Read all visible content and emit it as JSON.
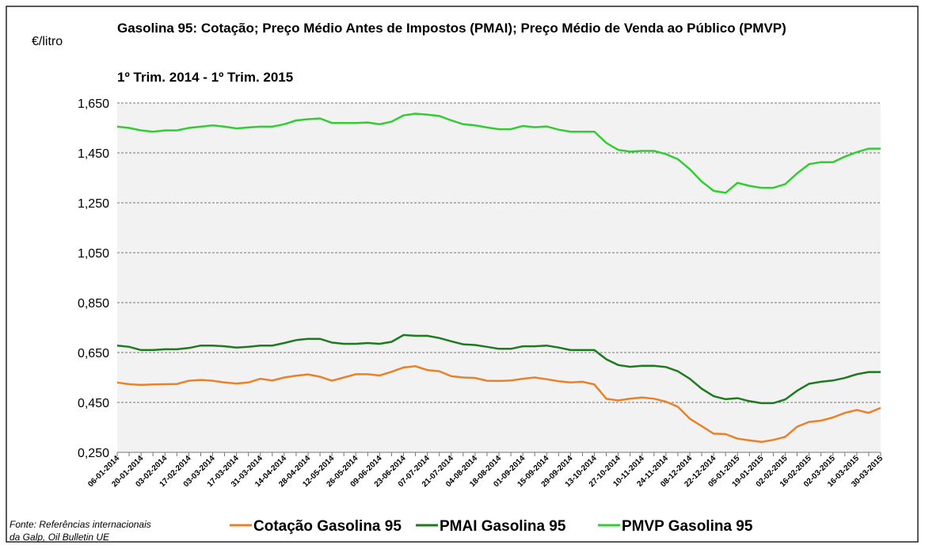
{
  "chart_data": {
    "type": "line",
    "title": "Gasolina 95: Cotação; Preço  Médio Antes de Impostos (PMAI); Preço Médio de Venda ao Público (PMVP)",
    "subtitle": "1º Trim. 2014 -  1º Trim. 2015",
    "y_axis_label": "€/litro",
    "source": [
      "Fonte: Referências internacionais",
      "da Galp, Oil Bulletin UE"
    ],
    "categories": [
      "06-01-2014",
      null,
      "20-01-2014",
      null,
      "03-02-2014",
      null,
      "17-02-2014",
      null,
      "03-03-2014",
      null,
      "17-03-2014",
      null,
      "31-03-2014",
      null,
      "14-04-2014",
      null,
      "28-04-2014",
      null,
      "12-05-2014",
      null,
      "26-05-2014",
      null,
      "09-06-2014",
      null,
      "23-06-2014",
      null,
      "07-07-2014",
      null,
      "21-07-2014",
      null,
      "04-08-2014",
      null,
      "18-08-2014",
      null,
      "01-09-2014",
      null,
      "15-09-2014",
      null,
      "29-09-2014",
      null,
      "13-10-2014",
      null,
      "27-10-2014",
      null,
      "10-11-2014",
      null,
      "24-11-2014",
      null,
      "08-12-2014",
      null,
      "22-12-2014",
      null,
      "05-01-2015",
      null,
      "19-01-2015",
      null,
      "02-02-2015",
      null,
      "16-02-2015",
      null,
      "02-03-2015",
      null,
      "16-03-2015",
      null,
      "30-03-2015"
    ],
    "series": [
      {
        "name": "Cotação Gasolina 95",
        "color": "#e8822a",
        "values": [
          0.53,
          0.523,
          0.52,
          0.522,
          0.523,
          0.524,
          0.537,
          0.54,
          0.537,
          0.53,
          0.526,
          0.53,
          0.545,
          0.538,
          0.55,
          0.557,
          0.562,
          0.553,
          0.537,
          0.55,
          0.563,
          0.563,
          0.558,
          0.573,
          0.59,
          0.595,
          0.58,
          0.575,
          0.555,
          0.55,
          0.548,
          0.537,
          0.536,
          0.538,
          0.545,
          0.55,
          0.543,
          0.535,
          0.53,
          0.533,
          0.522,
          0.465,
          0.458,
          0.465,
          0.47,
          0.465,
          0.453,
          0.433,
          0.385,
          0.355,
          0.325,
          0.323,
          0.305,
          0.298,
          0.292,
          0.3,
          0.312,
          0.353,
          0.372,
          0.377,
          0.39,
          0.408,
          0.42,
          0.408,
          0.428
        ]
      },
      {
        "name": "PMAI Gasolina 95",
        "color": "#1e7a1e",
        "values": [
          0.678,
          0.673,
          0.66,
          0.66,
          0.663,
          0.663,
          0.668,
          0.678,
          0.678,
          0.675,
          0.67,
          0.673,
          0.678,
          0.678,
          0.688,
          0.7,
          0.705,
          0.705,
          0.69,
          0.685,
          0.685,
          0.688,
          0.685,
          0.693,
          0.72,
          0.717,
          0.717,
          0.708,
          0.695,
          0.683,
          0.68,
          0.673,
          0.665,
          0.665,
          0.675,
          0.675,
          0.678,
          0.67,
          0.66,
          0.66,
          0.66,
          0.623,
          0.6,
          0.593,
          0.597,
          0.597,
          0.592,
          0.575,
          0.545,
          0.505,
          0.475,
          0.463,
          0.467,
          0.455,
          0.447,
          0.447,
          0.462,
          0.497,
          0.525,
          0.533,
          0.538,
          0.548,
          0.563,
          0.572,
          0.572
        ]
      },
      {
        "name": "PMVP Gasolina 95",
        "color": "#33cc33",
        "values": [
          1.555,
          1.55,
          1.54,
          1.535,
          1.54,
          1.54,
          1.55,
          1.555,
          1.56,
          1.555,
          1.548,
          1.552,
          1.555,
          1.555,
          1.565,
          1.58,
          1.585,
          1.588,
          1.57,
          1.57,
          1.57,
          1.572,
          1.565,
          1.575,
          1.6,
          1.607,
          1.603,
          1.598,
          1.58,
          1.565,
          1.56,
          1.552,
          1.545,
          1.545,
          1.558,
          1.553,
          1.556,
          1.543,
          1.535,
          1.535,
          1.535,
          1.49,
          1.462,
          1.455,
          1.458,
          1.458,
          1.445,
          1.425,
          1.385,
          1.335,
          1.298,
          1.29,
          1.33,
          1.318,
          1.31,
          1.31,
          1.325,
          1.368,
          1.405,
          1.413,
          1.413,
          1.435,
          1.453,
          1.467,
          1.467
        ]
      }
    ],
    "ylim": [
      0.25,
      1.65
    ],
    "yticks": [
      {
        "value": 0.25,
        "label": "0,250"
      },
      {
        "value": 0.45,
        "label": "0,450"
      },
      {
        "value": 0.65,
        "label": "0,650"
      },
      {
        "value": 0.85,
        "label": "0,850"
      },
      {
        "value": 1.05,
        "label": "1,050"
      },
      {
        "value": 1.25,
        "label": "1,250"
      },
      {
        "value": 1.45,
        "label": "1,450"
      },
      {
        "value": 1.65,
        "label": "1,650"
      }
    ],
    "grid": true,
    "legend": "bottom"
  }
}
